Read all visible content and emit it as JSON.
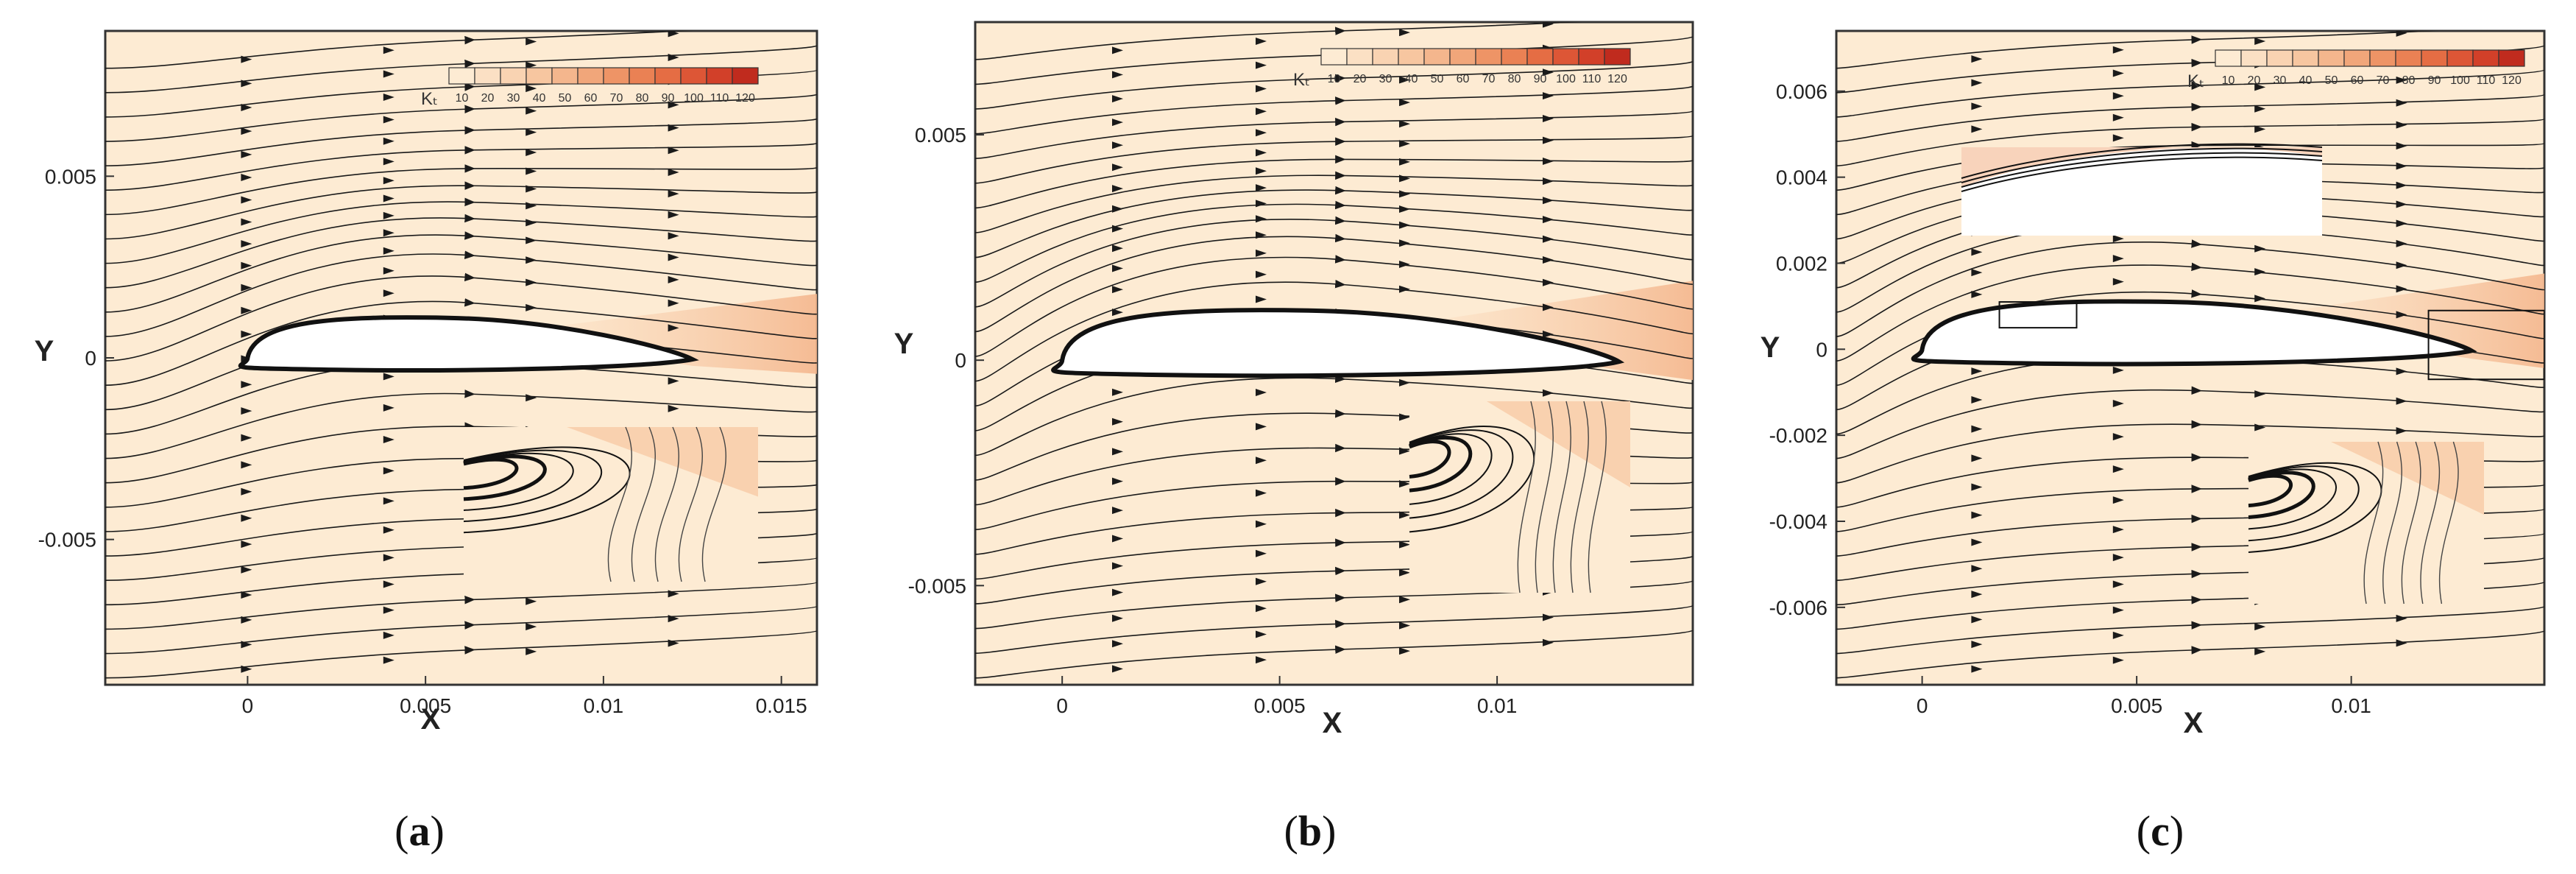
{
  "colors": {
    "background": "#fdebd3",
    "streamline": "#1a1a1a",
    "scale": [
      "#fdebd3",
      "#fbe0c4",
      "#f9d3b2",
      "#f7c6a0",
      "#f4b68d",
      "#f1a67a",
      "#ee9466",
      "#ea8154",
      "#e56d44",
      "#dd5636",
      "#d24029",
      "#c02b1e"
    ]
  },
  "chart_data": [
    {
      "type": "streamline-contour",
      "panel": "a",
      "caption": "a",
      "xlabel": "X",
      "ylabel": "Y",
      "xlim": [
        -0.004,
        0.016
      ],
      "ylim": [
        -0.009,
        0.009
      ],
      "xticks": [
        0,
        0.005,
        0.01,
        0.015
      ],
      "xtick_labels": [
        "0",
        "0.005",
        "0.01",
        "0.015"
      ],
      "yticks": [
        -0.005,
        0,
        0.005
      ],
      "ytick_labels": [
        "-0.005",
        "0",
        "0.005"
      ],
      "colorbar": {
        "title": "Kₜ",
        "levels": [
          10,
          20,
          30,
          40,
          50,
          60,
          70,
          80,
          90,
          100,
          110,
          120
        ],
        "labels": [
          "10",
          "20",
          "30",
          "40",
          "50",
          "60",
          "70",
          "80",
          "90",
          "100",
          "110",
          "120"
        ]
      },
      "airfoil": {
        "leading_edge_x": 0,
        "trailing_edge_x": 0.0125,
        "max_thickness_y": 0.0011
      },
      "inset": "trailing-edge separation vortex (zoom)"
    },
    {
      "type": "streamline-contour",
      "panel": "b",
      "caption": "b",
      "xlabel": "X",
      "ylabel": "Y",
      "xlim": [
        -0.002,
        0.0145
      ],
      "ylim": [
        -0.0072,
        0.0075
      ],
      "xticks": [
        0,
        0.005,
        0.01
      ],
      "xtick_labels": [
        "0",
        "0.005",
        "0.01"
      ],
      "yticks": [
        -0.005,
        0,
        0.005
      ],
      "ytick_labels": [
        "-0.005",
        "0",
        "0.005"
      ],
      "colorbar": {
        "title": "Kₜ",
        "levels": [
          10,
          20,
          30,
          40,
          50,
          60,
          70,
          80,
          90,
          100,
          110,
          120
        ],
        "labels": [
          "10",
          "20",
          "30",
          "40",
          "50",
          "60",
          "70",
          "80",
          "90",
          "100",
          "110",
          "120"
        ]
      },
      "airfoil": {
        "leading_edge_x": 0,
        "trailing_edge_x": 0.0128,
        "max_thickness_y": 0.0011
      },
      "inset": "trailing-edge separation vortex (zoom)"
    },
    {
      "type": "streamline-contour",
      "panel": "c",
      "caption": "c",
      "xlabel": "X",
      "ylabel": "Y",
      "xlim": [
        -0.002,
        0.0145
      ],
      "ylim": [
        -0.0078,
        0.0074
      ],
      "xticks": [
        0,
        0.005,
        0.01
      ],
      "xtick_labels": [
        "0",
        "0.005",
        "0.01"
      ],
      "yticks": [
        -0.006,
        -0.004,
        -0.002,
        0,
        0.002,
        0.004,
        0.006
      ],
      "ytick_labels": [
        "-0.006",
        "-0.004",
        "-0.002",
        "0",
        "0.002",
        "0.004",
        "0.006"
      ],
      "colorbar": {
        "title": "Kₜ",
        "levels": [
          10,
          20,
          30,
          40,
          50,
          60,
          70,
          80,
          90,
          100,
          110,
          120
        ],
        "labels": [
          "10",
          "20",
          "30",
          "40",
          "50",
          "60",
          "70",
          "80",
          "90",
          "100",
          "110",
          "120"
        ]
      },
      "airfoil": {
        "leading_edge_x": 0,
        "trailing_edge_x": 0.0128,
        "max_thickness_y": 0.0011
      },
      "insets": [
        "leading-edge boundary layer (zoom)",
        "trailing-edge separation vortex (zoom)"
      ]
    }
  ]
}
